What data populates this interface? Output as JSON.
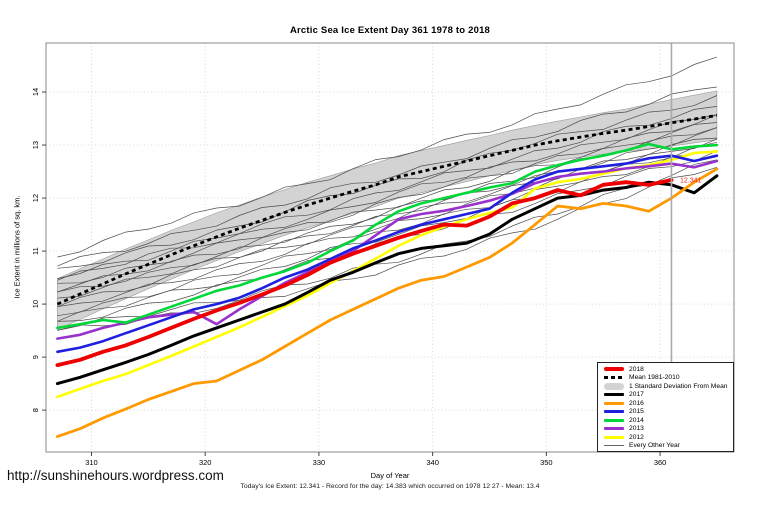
{
  "header": {
    "title": "Arctic Sea Ice Extent Day 361 1978 to 2018"
  },
  "footer": {
    "url": "http://sunshinehours.wordpress.com",
    "caption": "Today's Ice Extent: 12.341  - Record for the day: 14.383 which occurred on 1978 12 27  - Mean: 13.4"
  },
  "colors": {
    "red": "#ee0000",
    "black": "#000000",
    "orange": "#ff9900",
    "blue": "#1f1fe0",
    "green": "#00d839",
    "purple": "#9932cc",
    "yellow": "#ffff00",
    "band_fill": "#d3d3d3",
    "band_edge": "#9a9a9a",
    "thin": "#4d4d4d",
    "grid": "#d9d9d9",
    "frame": "#888888",
    "marker": "#aaaaaa",
    "annotation": "#ee2222"
  },
  "legend": {
    "items": [
      {
        "label": "2018",
        "type": "thick",
        "color": "#ee0000"
      },
      {
        "label": "Mean 1981-2010",
        "type": "dash",
        "color": "#000000"
      },
      {
        "label": "1 Standard Deviation From Mean",
        "type": "band",
        "color": "#d3d3d3"
      },
      {
        "label": "2017",
        "type": "line",
        "color": "#000000"
      },
      {
        "label": "2016",
        "type": "line",
        "color": "#ff9900"
      },
      {
        "label": "2015",
        "type": "line",
        "color": "#1f1fe0"
      },
      {
        "label": "2014",
        "type": "line",
        "color": "#00d839"
      },
      {
        "label": "2013",
        "type": "line",
        "color": "#9932cc"
      },
      {
        "label": "2012",
        "type": "line",
        "color": "#ffff00"
      },
      {
        "label": "Every Other Year",
        "type": "thin",
        "color": "#666666"
      }
    ]
  },
  "chart_data": {
    "type": "line",
    "title": "Arctic Sea Ice Extent Day 361 1978 to 2018",
    "xlabel": "Day of Year",
    "ylabel": "Ice Extent in millions of sq. km.",
    "xlim": [
      306,
      366.5
    ],
    "ylim": [
      7.21,
      14.925
    ],
    "x_ticks": [
      310,
      320,
      330,
      340,
      350,
      360
    ],
    "y_ticks": [
      8,
      9,
      10,
      11,
      12,
      13,
      14
    ],
    "grid": true,
    "legend_position": "bottom-right",
    "days": [
      307,
      309,
      311,
      313,
      315,
      317,
      319,
      321,
      323,
      325,
      327,
      329,
      331,
      333,
      335,
      337,
      339,
      341,
      343,
      345,
      347,
      349,
      351,
      353,
      355,
      357,
      359,
      361,
      363,
      365
    ],
    "series": [
      {
        "name": "2012",
        "color": "#ffff00",
        "width": 2.6,
        "values": [
          8.25,
          8.4,
          8.55,
          8.68,
          8.85,
          9.02,
          9.2,
          9.38,
          9.56,
          9.76,
          9.96,
          10.16,
          10.4,
          10.62,
          10.86,
          11.1,
          11.3,
          11.46,
          11.6,
          11.72,
          11.82,
          12.18,
          12.3,
          12.36,
          12.46,
          12.56,
          12.62,
          12.72,
          12.85,
          12.88
        ]
      },
      {
        "name": "2013",
        "color": "#9932cc",
        "width": 2.6,
        "values": [
          9.35,
          9.42,
          9.55,
          9.65,
          9.75,
          9.8,
          9.85,
          9.62,
          9.9,
          10.15,
          10.4,
          10.6,
          10.8,
          11.0,
          11.3,
          11.6,
          11.7,
          11.76,
          11.85,
          11.95,
          12.08,
          12.28,
          12.4,
          12.46,
          12.5,
          12.56,
          12.6,
          12.65,
          12.58,
          12.7
        ]
      },
      {
        "name": "2015",
        "color": "#1f1fe0",
        "width": 2.6,
        "values": [
          9.1,
          9.18,
          9.3,
          9.45,
          9.6,
          9.75,
          9.9,
          10.0,
          10.12,
          10.3,
          10.5,
          10.65,
          10.85,
          11.05,
          11.2,
          11.36,
          11.5,
          11.6,
          11.7,
          11.8,
          12.1,
          12.35,
          12.5,
          12.55,
          12.6,
          12.65,
          12.75,
          12.8,
          12.7,
          12.8
        ]
      },
      {
        "name": "2014",
        "color": "#00d839",
        "width": 2.6,
        "values": [
          9.55,
          9.62,
          9.7,
          9.65,
          9.8,
          9.95,
          10.1,
          10.25,
          10.35,
          10.5,
          10.62,
          10.78,
          11.0,
          11.2,
          11.5,
          11.75,
          11.9,
          12.0,
          12.1,
          12.2,
          12.28,
          12.5,
          12.62,
          12.72,
          12.8,
          12.9,
          13.02,
          12.92,
          12.97,
          13.0
        ]
      },
      {
        "name": "2017",
        "color": "#000000",
        "width": 3,
        "values": [
          8.5,
          8.62,
          8.76,
          8.9,
          9.05,
          9.22,
          9.4,
          9.55,
          9.7,
          9.85,
          10.0,
          10.22,
          10.45,
          10.6,
          10.78,
          10.95,
          11.05,
          11.1,
          11.15,
          11.32,
          11.6,
          11.8,
          12.0,
          12.05,
          12.15,
          12.2,
          12.3,
          12.25,
          12.1,
          12.42
        ]
      },
      {
        "name": "2016",
        "color": "#ff9900",
        "width": 2.8,
        "values": [
          7.5,
          7.65,
          7.85,
          8.02,
          8.2,
          8.35,
          8.5,
          8.55,
          8.75,
          8.95,
          9.2,
          9.45,
          9.7,
          9.9,
          10.1,
          10.3,
          10.45,
          10.52,
          10.7,
          10.88,
          11.15,
          11.5,
          11.85,
          11.8,
          11.9,
          11.85,
          11.75,
          12.0,
          12.3,
          12.55
        ]
      },
      {
        "name": "2018",
        "color": "#ee0000",
        "width": 3.8,
        "values": [
          8.85,
          8.95,
          9.1,
          9.22,
          9.38,
          9.55,
          9.72,
          9.88,
          10.02,
          10.18,
          10.35,
          10.55,
          10.78,
          10.95,
          11.1,
          11.25,
          11.38,
          11.5,
          11.48,
          11.65,
          11.9,
          12.0,
          12.15,
          12.05,
          12.25,
          12.3,
          12.25,
          12.34
        ]
      }
    ],
    "mean": {
      "name": "Mean 1981-2010",
      "values": [
        10.0,
        10.19,
        10.38,
        10.57,
        10.75,
        10.93,
        11.1,
        11.27,
        11.43,
        11.58,
        11.73,
        11.87,
        12.0,
        12.13,
        12.25,
        12.4,
        12.5,
        12.6,
        12.7,
        12.8,
        12.9,
        13.0,
        13.08,
        13.15,
        13.22,
        13.28,
        13.35,
        13.42,
        13.49,
        13.56
      ]
    },
    "band": {
      "name": "1 Standard Deviation From Mean",
      "upper": [
        10.48,
        10.67,
        10.85,
        11.04,
        11.21,
        11.39,
        11.55,
        11.72,
        11.87,
        12.02,
        12.16,
        12.3,
        12.42,
        12.55,
        12.66,
        12.8,
        12.9,
        12.99,
        13.09,
        13.18,
        13.28,
        13.37,
        13.45,
        13.53,
        13.61,
        13.68,
        13.77,
        13.86,
        13.94,
        14.02
      ],
      "lower": [
        9.52,
        9.71,
        9.91,
        10.1,
        10.29,
        10.47,
        10.65,
        10.82,
        10.99,
        11.14,
        11.3,
        11.44,
        11.58,
        11.71,
        11.84,
        12.0,
        12.1,
        12.21,
        12.31,
        12.42,
        12.52,
        12.63,
        12.71,
        12.77,
        12.83,
        12.88,
        12.93,
        12.98,
        13.04,
        13.1
      ]
    },
    "thin_days": [
      307,
      315,
      323,
      331,
      339,
      347,
      355,
      365
    ],
    "thin_lines": [
      [
        10.9,
        11.45,
        11.9,
        12.4,
        12.95,
        13.4,
        13.95,
        14.62
      ],
      [
        10.75,
        11.15,
        11.65,
        12.15,
        12.55,
        13.05,
        13.55,
        14.15
      ],
      [
        10.62,
        11.05,
        11.45,
        12.05,
        12.4,
        12.95,
        13.35,
        13.9
      ],
      [
        10.52,
        10.88,
        11.38,
        11.82,
        12.32,
        12.72,
        13.22,
        13.72
      ],
      [
        10.45,
        10.92,
        11.28,
        11.72,
        12.22,
        12.65,
        13.05,
        13.62
      ],
      [
        10.35,
        10.72,
        11.22,
        11.58,
        12.12,
        12.52,
        12.98,
        13.52
      ],
      [
        10.28,
        10.68,
        11.08,
        11.58,
        11.98,
        12.48,
        12.88,
        13.45
      ],
      [
        10.2,
        10.55,
        11.02,
        11.42,
        11.92,
        12.32,
        12.82,
        13.35
      ],
      [
        10.1,
        10.52,
        10.92,
        11.38,
        11.82,
        12.28,
        12.68,
        13.28
      ],
      [
        10.0,
        10.38,
        10.88,
        11.28,
        11.78,
        12.18,
        12.65,
        13.18
      ],
      [
        9.9,
        10.32,
        10.72,
        11.22,
        11.62,
        12.12,
        12.55,
        13.1
      ],
      [
        9.8,
        10.18,
        10.62,
        11.08,
        11.55,
        11.98,
        12.48,
        13.02
      ],
      [
        9.7,
        10.12,
        10.48,
        11.02,
        11.42,
        11.92,
        12.38,
        12.95
      ],
      [
        9.62,
        9.98,
        10.42,
        10.88,
        11.35,
        11.78,
        12.28,
        12.85
      ],
      [
        9.55,
        9.82,
        10.12,
        10.52,
        10.95,
        11.45,
        12.02,
        12.72
      ],
      [
        9.5,
        9.72,
        10.02,
        10.38,
        10.82,
        11.32,
        11.9,
        12.62
      ]
    ],
    "marker_day": 361,
    "annotation": {
      "text": "12.341",
      "day": 361.4,
      "value": 12.33
    }
  }
}
